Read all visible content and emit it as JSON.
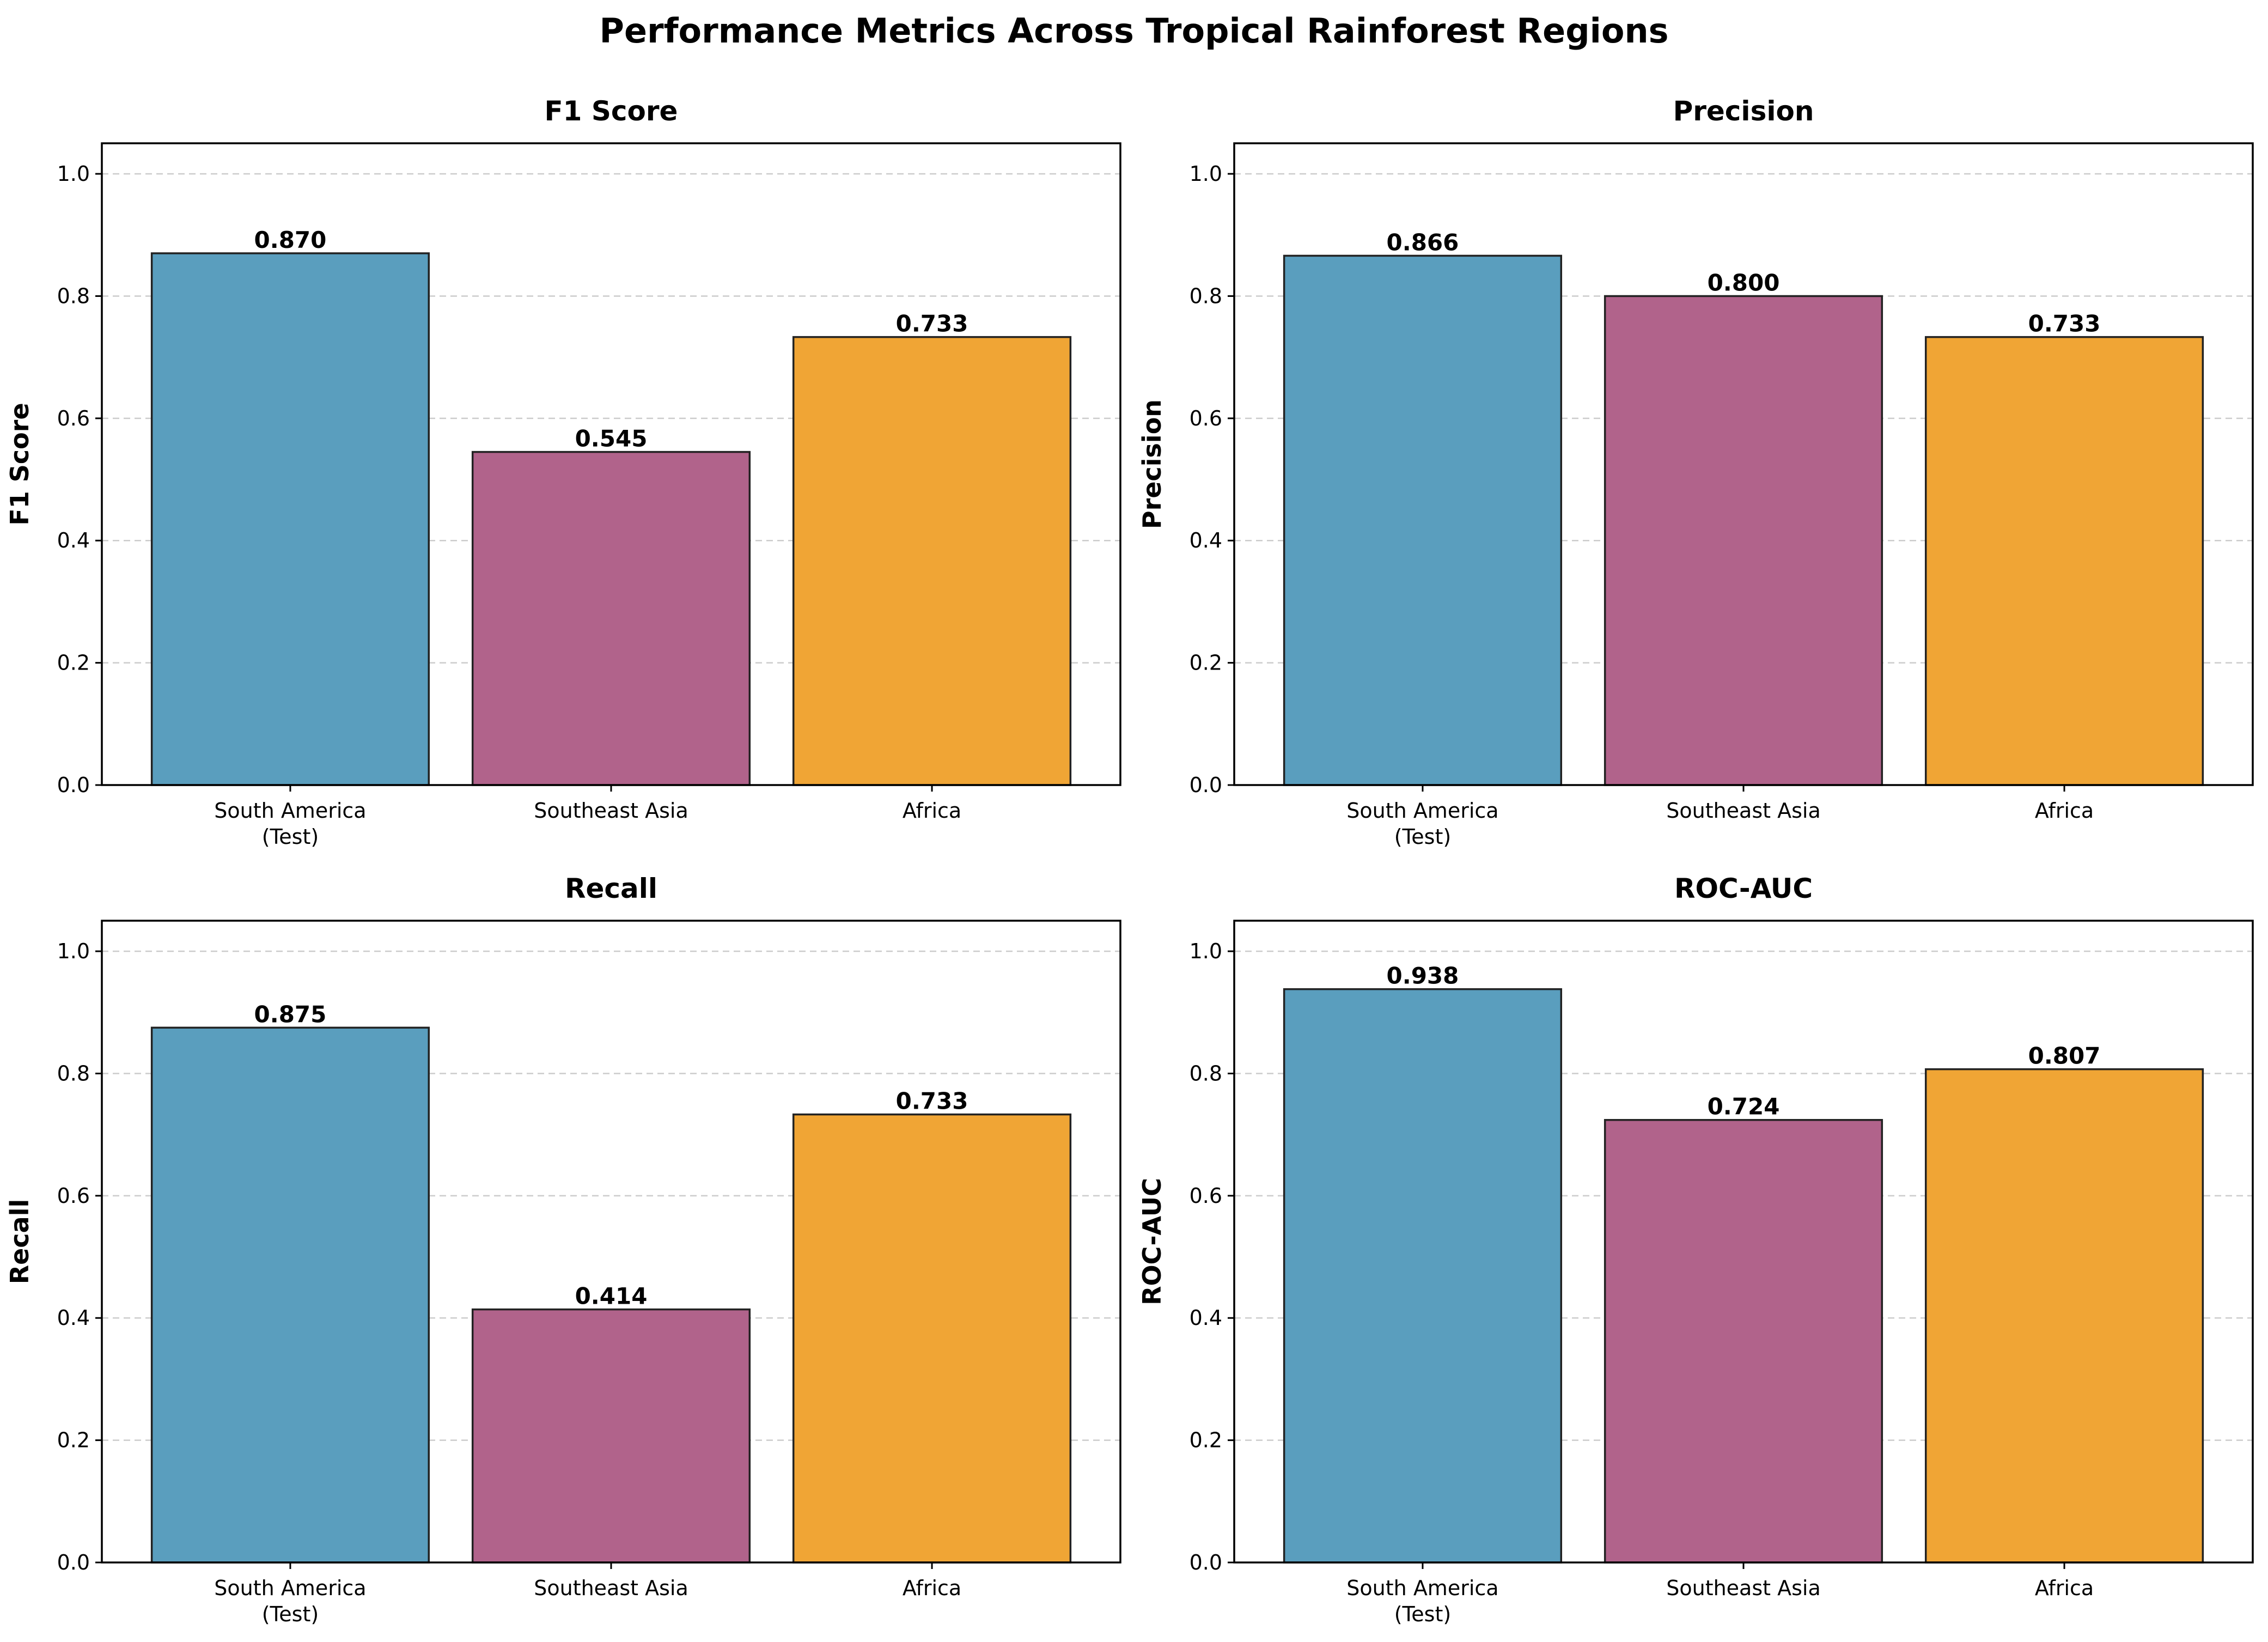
{
  "figure": {
    "title": "Performance Metrics Across Tropical Rainforest Regions"
  },
  "colors": {
    "South America (Test)": "#5a9ebe",
    "Southeast Asia": "#b1638b",
    "Africa": "#f0a535"
  },
  "chart_data": [
    {
      "type": "bar",
      "title": "F1 Score",
      "xlabel": "",
      "ylabel": "F1 Score",
      "categories": [
        "South America\n(Test)",
        "Southeast Asia",
        "Africa"
      ],
      "values": [
        0.87,
        0.545,
        0.733
      ],
      "value_labels": [
        "0.870",
        "0.545",
        "0.733"
      ],
      "ylim": [
        0,
        1.05
      ],
      "yticks": [
        "0.0",
        "0.2",
        "0.4",
        "0.6",
        "0.8",
        "1.0"
      ],
      "grid": "y-dashed"
    },
    {
      "type": "bar",
      "title": "Precision",
      "xlabel": "",
      "ylabel": "Precision",
      "categories": [
        "South America\n(Test)",
        "Southeast Asia",
        "Africa"
      ],
      "values": [
        0.866,
        0.8,
        0.733
      ],
      "value_labels": [
        "0.866",
        "0.800",
        "0.733"
      ],
      "ylim": [
        0,
        1.05
      ],
      "yticks": [
        "0.0",
        "0.2",
        "0.4",
        "0.6",
        "0.8",
        "1.0"
      ],
      "grid": "y-dashed"
    },
    {
      "type": "bar",
      "title": "Recall",
      "xlabel": "",
      "ylabel": "Recall",
      "categories": [
        "South America\n(Test)",
        "Southeast Asia",
        "Africa"
      ],
      "values": [
        0.875,
        0.414,
        0.733
      ],
      "value_labels": [
        "0.875",
        "0.414",
        "0.733"
      ],
      "ylim": [
        0,
        1.05
      ],
      "yticks": [
        "0.0",
        "0.2",
        "0.4",
        "0.6",
        "0.8",
        "1.0"
      ],
      "grid": "y-dashed"
    },
    {
      "type": "bar",
      "title": "ROC-AUC",
      "xlabel": "",
      "ylabel": "ROC-AUC",
      "categories": [
        "South America\n(Test)",
        "Southeast Asia",
        "Africa"
      ],
      "values": [
        0.938,
        0.724,
        0.807
      ],
      "value_labels": [
        "0.938",
        "0.724",
        "0.807"
      ],
      "ylim": [
        0,
        1.05
      ],
      "yticks": [
        "0.0",
        "0.2",
        "0.4",
        "0.6",
        "0.8",
        "1.0"
      ],
      "grid": "y-dashed"
    }
  ]
}
